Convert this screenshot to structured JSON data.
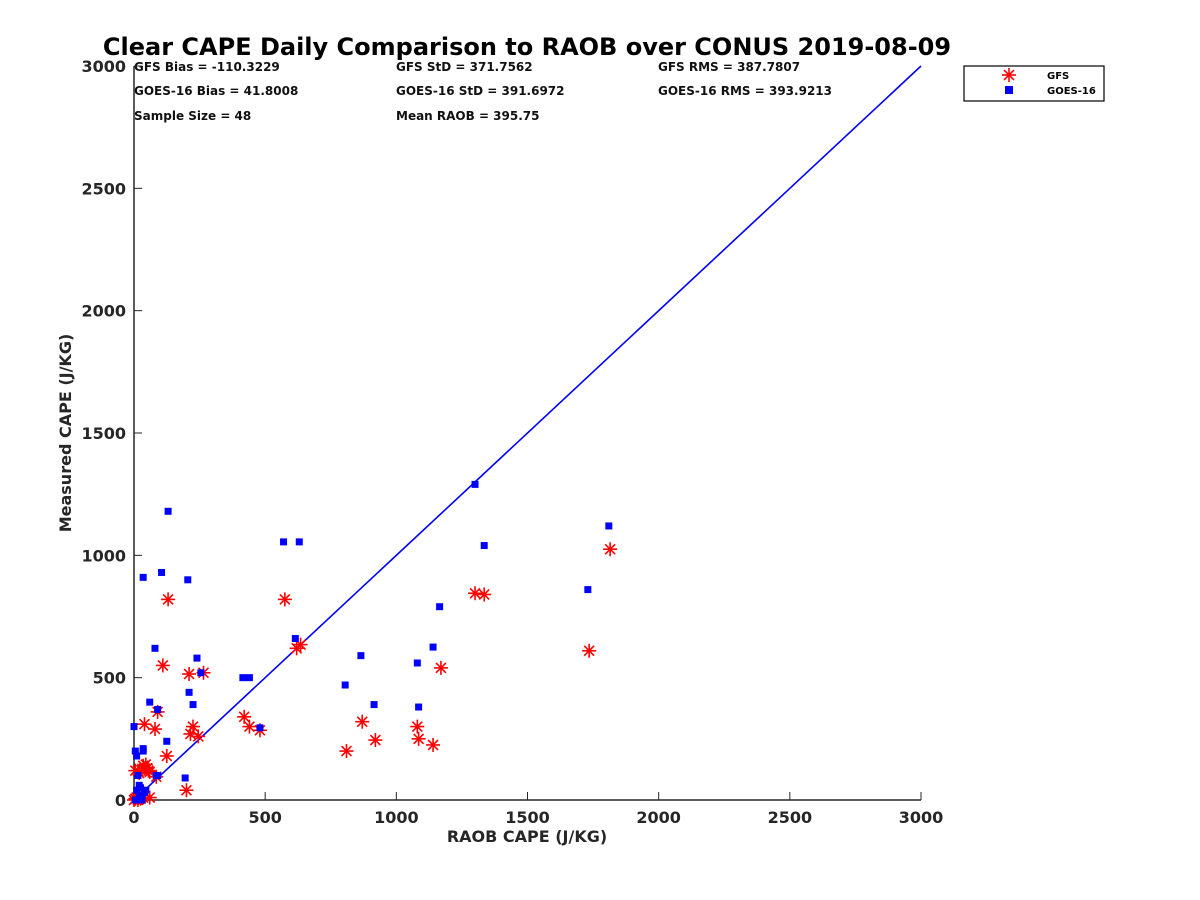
{
  "chart_data": {
    "type": "scatter",
    "title": "Clear CAPE Daily Comparison to RAOB over CONUS 2019-08-09",
    "xlabel": "RAOB CAPE (J/KG)",
    "ylabel": "Measured CAPE (J/KG)",
    "xlim": [
      0,
      3000
    ],
    "ylim": [
      0,
      3000
    ],
    "xticks": [
      0,
      500,
      1000,
      1500,
      2000,
      2500,
      3000
    ],
    "yticks": [
      0,
      500,
      1000,
      1500,
      2000,
      2500,
      3000
    ],
    "grid": false,
    "legend_position": "outside-top-right",
    "reference_line": {
      "x": [
        0,
        3000
      ],
      "y": [
        0,
        3000
      ],
      "color": "#0000ff"
    },
    "stats": {
      "gfs_bias": "GFS Bias = -110.3229",
      "gfs_std": "GFS StD = 371.7562",
      "gfs_rms": "GFS RMS = 387.7807",
      "goes_bias": "GOES-16 Bias = 41.8008",
      "goes_std": "GOES-16 StD = 391.6972",
      "goes_rms": "GOES-16 RMS = 393.9213",
      "sample_size": "Sample Size = 48",
      "mean_raob": "Mean RAOB = 395.75"
    },
    "series": [
      {
        "name": "GFS",
        "marker": "asterisk",
        "color": "#ff0000",
        "x": [
          0,
          5,
          10,
          15,
          20,
          25,
          30,
          35,
          40,
          45,
          55,
          60,
          5,
          20,
          40,
          50,
          80,
          90,
          110,
          125,
          130,
          200,
          210,
          215,
          225,
          245,
          265,
          420,
          440,
          480,
          575,
          620,
          635,
          810,
          870,
          920,
          1080,
          1085,
          1140,
          1170,
          1300,
          1335,
          1735,
          1815,
          35,
          15,
          60,
          85
        ],
        "y": [
          0,
          5,
          10,
          0,
          15,
          5,
          20,
          10,
          130,
          145,
          120,
          10,
          120,
          110,
          310,
          130,
          290,
          360,
          550,
          180,
          820,
          40,
          515,
          270,
          300,
          260,
          520,
          340,
          300,
          285,
          820,
          620,
          635,
          200,
          320,
          245,
          300,
          250,
          225,
          540,
          845,
          840,
          610,
          1025,
          140,
          120,
          115,
          95
        ]
      },
      {
        "name": "GOES-16",
        "marker": "square",
        "color": "#0000ff",
        "x": [
          0,
          5,
          10,
          15,
          20,
          25,
          30,
          35,
          40,
          45,
          5,
          10,
          20,
          25,
          30,
          35,
          60,
          80,
          85,
          90,
          105,
          125,
          130,
          195,
          205,
          210,
          225,
          240,
          255,
          415,
          440,
          480,
          570,
          615,
          630,
          805,
          865,
          915,
          1080,
          1085,
          1140,
          1165,
          1300,
          1335,
          1730,
          1810,
          35,
          90
        ],
        "y": [
          300,
          200,
          180,
          100,
          60,
          20,
          10,
          200,
          30,
          40,
          0,
          40,
          10,
          50,
          0,
          910,
          400,
          620,
          100,
          370,
          930,
          240,
          1180,
          90,
          900,
          440,
          390,
          580,
          520,
          500,
          500,
          295,
          1055,
          660,
          1055,
          470,
          590,
          390,
          560,
          380,
          625,
          790,
          1290,
          1040,
          860,
          1120,
          210,
          100
        ]
      }
    ]
  }
}
